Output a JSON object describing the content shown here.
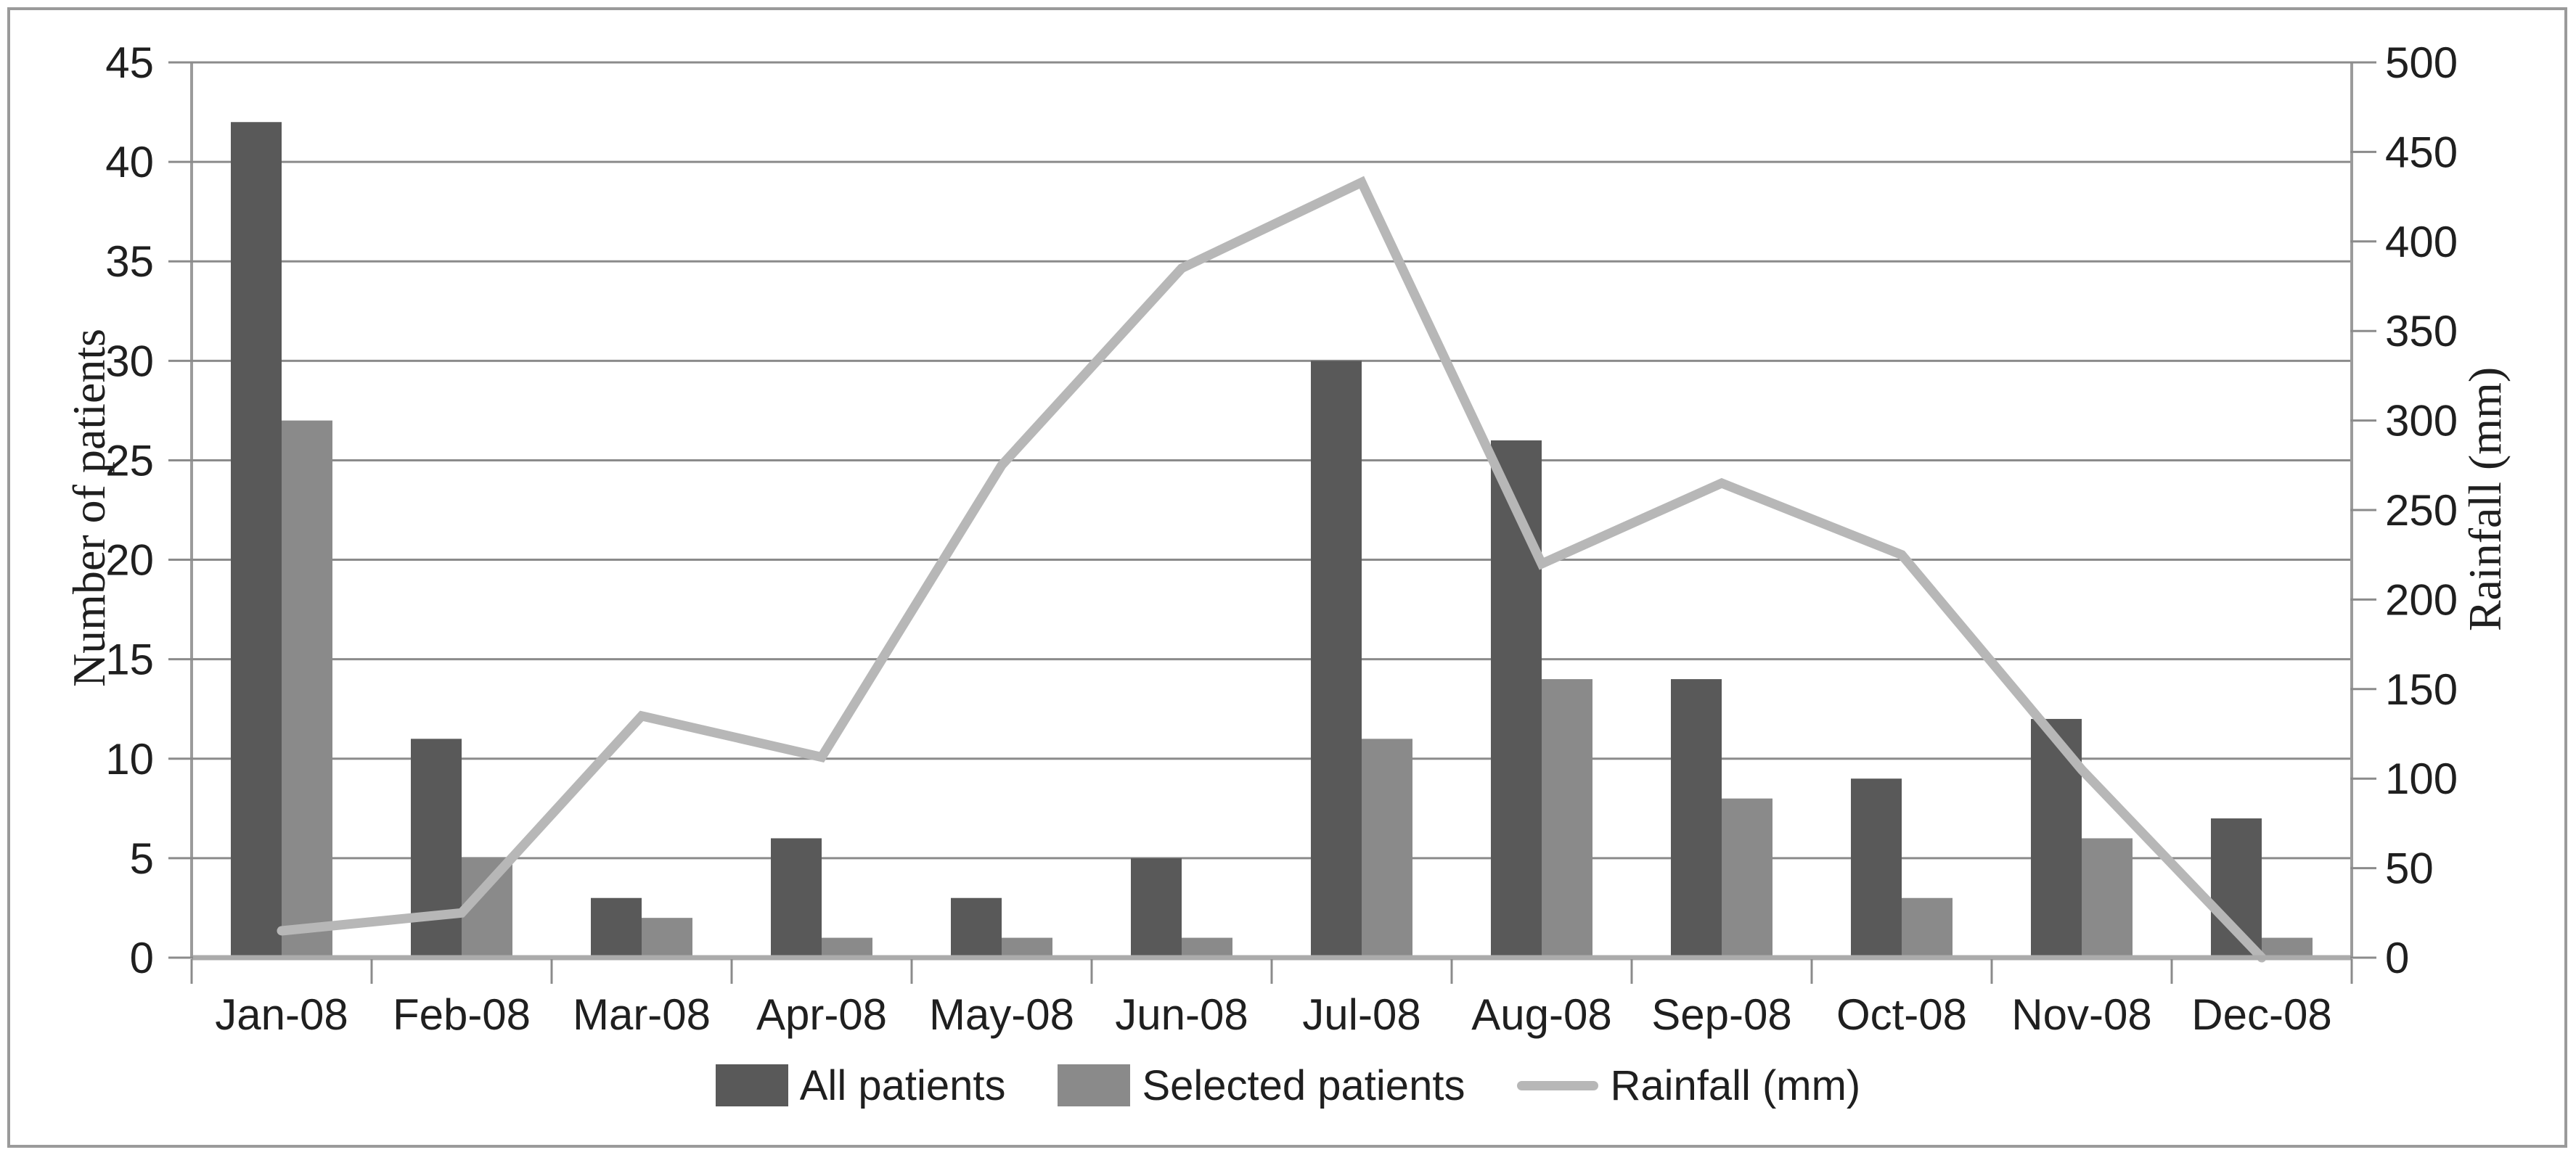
{
  "chart_data": {
    "type": "bar",
    "subtype": "combo-bar-line-dual-axis",
    "categories": [
      "Jan-08",
      "Feb-08",
      "Mar-08",
      "Apr-08",
      "May-08",
      "Jun-08",
      "Jul-08",
      "Aug-08",
      "Sep-08",
      "Oct-08",
      "Nov-08",
      "Dec-08"
    ],
    "series": [
      {
        "name": "All patients",
        "type": "bar",
        "axis": "left",
        "color": "#595959",
        "values": [
          42,
          11,
          3,
          6,
          3,
          5,
          30,
          26,
          14,
          9,
          12,
          7
        ]
      },
      {
        "name": "Selected patients",
        "type": "bar",
        "axis": "left",
        "color": "#8a8a8a",
        "values": [
          27,
          5,
          2,
          1,
          1,
          1,
          11,
          14,
          8,
          3,
          6,
          1
        ]
      },
      {
        "name": "Rainfall (mm)",
        "type": "line",
        "axis": "right",
        "color": "#b7b7b7",
        "values": [
          15,
          25,
          135,
          112,
          275,
          385,
          433,
          220,
          265,
          225,
          105,
          0
        ]
      }
    ],
    "left_axis": {
      "title": "Number of patients",
      "min": 0,
      "max": 45,
      "step": 5,
      "ticks": [
        0,
        5,
        10,
        15,
        20,
        25,
        30,
        35,
        40,
        45
      ]
    },
    "right_axis": {
      "title": "Rainfall (mm)",
      "min": 0,
      "max": 500,
      "step": 50,
      "ticks": [
        0,
        50,
        100,
        150,
        200,
        250,
        300,
        350,
        400,
        450,
        500
      ]
    },
    "grid": true,
    "legend_position": "bottom"
  },
  "colors": {
    "bar_all": "#595959",
    "bar_selected": "#8a8a8a",
    "rain_line": "#b7b7b7",
    "gridline": "#8b8b8b",
    "axis_line": "#9b9b9b",
    "baseline": "#ababab",
    "text": "#1f1f1f",
    "frame_border": "#9a9a9a"
  }
}
